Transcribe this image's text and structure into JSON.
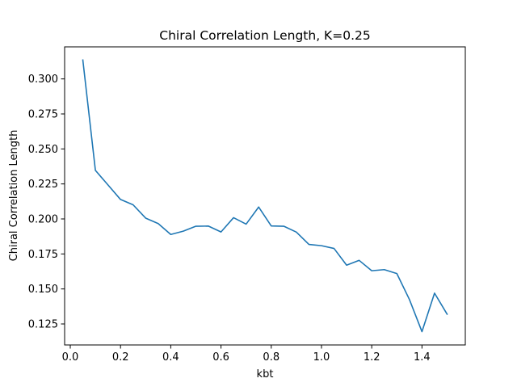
{
  "chart_data": {
    "type": "line",
    "title": "Chiral Correlation Length, K=0.25",
    "xlabel": "kbt",
    "ylabel": "Chiral Correlation Length",
    "xlim": [
      -0.0225,
      1.5725
    ],
    "ylim": [
      0.11,
      0.3229
    ],
    "x_ticks": [
      0.0,
      0.2,
      0.4,
      0.6,
      0.8,
      1.0,
      1.2,
      1.4
    ],
    "x_tick_labels": [
      "0.0",
      "0.2",
      "0.4",
      "0.6",
      "0.8",
      "1.0",
      "1.2",
      "1.4"
    ],
    "y_ticks": [
      0.125,
      0.15,
      0.175,
      0.2,
      0.225,
      0.25,
      0.275,
      0.3
    ],
    "y_tick_labels": [
      "0.125",
      "0.150",
      "0.175",
      "0.200",
      "0.225",
      "0.250",
      "0.275",
      "0.300"
    ],
    "grid": false,
    "series": [
      {
        "color": "#1f77b4",
        "x": [
          0.05,
          0.1,
          0.15,
          0.2,
          0.25,
          0.3,
          0.35,
          0.4,
          0.45,
          0.5,
          0.55,
          0.6,
          0.65,
          0.7,
          0.75,
          0.8,
          0.85,
          0.9,
          0.95,
          1.0,
          1.05,
          1.1,
          1.15,
          1.2,
          1.25,
          1.3,
          1.35,
          1.4,
          1.45,
          1.5
        ],
        "y": [
          0.3135,
          0.2347,
          0.2243,
          0.2139,
          0.2101,
          0.2006,
          0.1967,
          0.1889,
          0.1913,
          0.1948,
          0.1949,
          0.1907,
          0.2009,
          0.1963,
          0.2085,
          0.195,
          0.1948,
          0.1906,
          0.1818,
          0.1809,
          0.1789,
          0.167,
          0.1704,
          0.163,
          0.1638,
          0.161,
          0.1425,
          0.1195,
          0.147,
          0.132
        ]
      }
    ]
  }
}
